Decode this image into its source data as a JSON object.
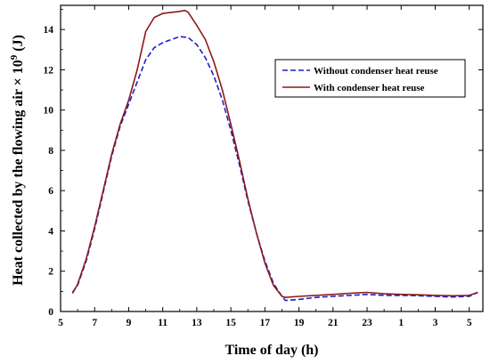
{
  "chart_data": {
    "type": "line",
    "xlabel": "Time of day (h)",
    "ylabel_main": "Heat collected by the flowing air × 10",
    "ylabel_exp": "9",
    "ylabel_unit": " (J)",
    "x_ticks": [
      "5",
      "7",
      "9",
      "11",
      "13",
      "15",
      "17",
      "19",
      "21",
      "23",
      "1",
      "3",
      "5"
    ],
    "y_ticks": [
      "0",
      "2",
      "4",
      "6",
      "8",
      "10",
      "12",
      "14"
    ],
    "xlim": [
      5,
      29.8
    ],
    "ylim": [
      0,
      15.2
    ],
    "grid": false,
    "legend_position": "top-right",
    "series": [
      {
        "name": "Without condenser heat reuse",
        "color": "#1f1fcc",
        "dash": "6,3",
        "x": [
          5.7,
          6.0,
          6.5,
          7.0,
          7.5,
          8.0,
          8.5,
          9.0,
          9.5,
          10.0,
          10.5,
          11.0,
          11.5,
          12.0,
          12.5,
          13.0,
          13.5,
          14.0,
          14.5,
          15.0,
          15.5,
          16.0,
          16.5,
          17.0,
          17.5,
          18.0,
          18.2,
          19.0,
          20.0,
          21.0,
          22.0,
          23.0,
          24.0,
          25.0,
          26.0,
          27.0,
          28.0,
          29.0,
          29.5
        ],
        "y": [
          0.95,
          1.3,
          2.5,
          4.1,
          5.9,
          7.7,
          9.2,
          10.3,
          11.4,
          12.5,
          13.1,
          13.35,
          13.5,
          13.65,
          13.6,
          13.25,
          12.6,
          11.7,
          10.5,
          9.0,
          7.3,
          5.5,
          3.9,
          2.5,
          1.4,
          0.75,
          0.55,
          0.6,
          0.7,
          0.75,
          0.8,
          0.85,
          0.8,
          0.8,
          0.78,
          0.75,
          0.72,
          0.75,
          0.95
        ]
      },
      {
        "name": "With condenser heat reuse",
        "color": "#8b1a1a",
        "dash": "",
        "x": [
          5.7,
          6.0,
          6.5,
          7.0,
          7.5,
          8.0,
          8.5,
          9.0,
          9.5,
          10.0,
          10.5,
          11.0,
          11.5,
          12.0,
          12.3,
          12.5,
          13.0,
          13.5,
          14.0,
          14.5,
          15.0,
          15.5,
          16.0,
          16.5,
          17.0,
          17.5,
          18.0,
          18.2,
          19.0,
          20.0,
          21.0,
          22.0,
          23.0,
          24.0,
          25.0,
          26.0,
          27.0,
          28.0,
          29.0,
          29.5
        ],
        "y": [
          0.9,
          1.35,
          2.6,
          4.2,
          6.0,
          7.8,
          9.3,
          10.5,
          12.0,
          13.9,
          14.6,
          14.8,
          14.85,
          14.9,
          14.95,
          14.85,
          14.2,
          13.5,
          12.4,
          11.0,
          9.3,
          7.5,
          5.6,
          3.9,
          2.4,
          1.3,
          0.75,
          0.7,
          0.75,
          0.8,
          0.85,
          0.9,
          0.95,
          0.88,
          0.85,
          0.83,
          0.8,
          0.78,
          0.8,
          0.95
        ]
      }
    ]
  }
}
